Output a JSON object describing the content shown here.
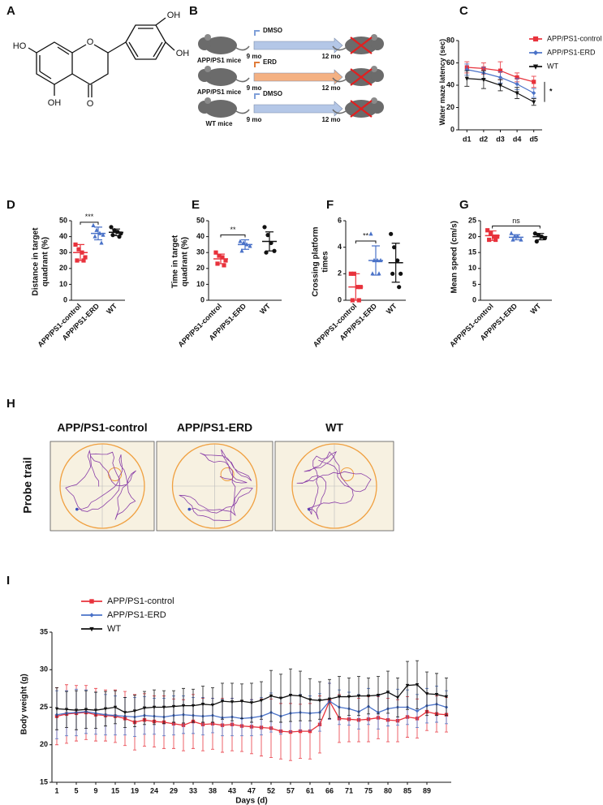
{
  "panel_labels": [
    "A",
    "B",
    "C",
    "D",
    "E",
    "F",
    "G",
    "H",
    "I"
  ],
  "structure": {
    "atoms": [
      "HO",
      "OH",
      "O",
      "O",
      "OH",
      "OH"
    ]
  },
  "design": {
    "rows": [
      {
        "treatment": "DMSO",
        "color": "#b4c7e7",
        "start": "9 mo",
        "end": "12 mo",
        "group": "APP/PS1 mice"
      },
      {
        "treatment": "ERD",
        "color": "#f4b183",
        "start": "9 mo",
        "end": "12 mo",
        "group": "APP/PS1 mice"
      },
      {
        "treatment": "DMSO",
        "color": "#b4c7e7",
        "start": "9 mo",
        "end": "12 mo",
        "group": "WT mice"
      }
    ]
  },
  "probe_trail": {
    "title": "Probe trail",
    "groups": [
      "APP/PS1-control",
      "APP/PS1-ERD",
      "WT"
    ]
  },
  "chart_data": [
    {
      "type": "line",
      "ylabel": "Water maze latency (sec)",
      "categories": [
        "d1",
        "d2",
        "d3",
        "d4",
        "d5"
      ],
      "ylim": [
        0,
        80
      ],
      "yticks": [
        0,
        20,
        40,
        60,
        80
      ],
      "legend": "upper right",
      "annotation": "*",
      "series": [
        {
          "name": "APP/PS1-control",
          "color": "#e8323c",
          "marker": "square",
          "values": [
            56,
            55,
            53,
            47,
            43
          ],
          "errors": [
            5,
            5,
            8,
            4,
            5
          ]
        },
        {
          "name": "APP/PS1-ERD",
          "color": "#4a72c8",
          "marker": "diamond",
          "values": [
            54,
            51,
            47,
            41,
            33
          ],
          "errors": [
            5,
            5,
            5,
            5,
            4
          ]
        },
        {
          "name": "WT",
          "color": "#111111",
          "marker": "triangle-down",
          "values": [
            46,
            45,
            40,
            33,
            25
          ],
          "errors": [
            7,
            8,
            5,
            5,
            3
          ]
        }
      ]
    },
    {
      "type": "dotplot",
      "ylabel": "Distance in target quadrant (%)",
      "categories": [
        "APP/PS1-control",
        "APP/PS1-ERD",
        "WT"
      ],
      "ylim": [
        0,
        50
      ],
      "yticks": [
        0,
        10,
        20,
        30,
        40,
        50
      ],
      "annotation": "***",
      "annotation_span": [
        0,
        1
      ],
      "groups": [
        {
          "color": "#e8323c",
          "marker": "square",
          "points": [
            35,
            32,
            30,
            27,
            25,
            25
          ],
          "mean": 30,
          "sd": 5
        },
        {
          "color": "#4a72c8",
          "marker": "triangle",
          "points": [
            47,
            44,
            42,
            41,
            40,
            36
          ],
          "mean": 42,
          "sd": 4
        },
        {
          "color": "#111111",
          "marker": "circle",
          "points": [
            46,
            44,
            43,
            42,
            41,
            40
          ],
          "mean": 42.7,
          "sd": 2.1
        }
      ]
    },
    {
      "type": "dotplot",
      "ylabel": "Time in target quadrant (%)",
      "categories": [
        "APP/PS1-control",
        "APP/PS1-ERD",
        "WT"
      ],
      "ylim": [
        0,
        50
      ],
      "yticks": [
        0,
        10,
        20,
        30,
        40,
        50
      ],
      "annotation": "**",
      "annotation_span": [
        0,
        1
      ],
      "groups": [
        {
          "color": "#e8323c",
          "marker": "square",
          "points": [
            30,
            28,
            27,
            25,
            23,
            22
          ],
          "mean": 26,
          "sd": 3
        },
        {
          "color": "#4a72c8",
          "marker": "triangle",
          "points": [
            37,
            36,
            35,
            34,
            31
          ],
          "mean": 35,
          "sd": 3
        },
        {
          "color": "#111111",
          "marker": "circle",
          "points": [
            46,
            41,
            36,
            31,
            30
          ],
          "mean": 37,
          "sd": 6
        }
      ]
    },
    {
      "type": "dotplot",
      "ylabel": "Crossing platform times",
      "categories": [
        "APP/PS1-control",
        "APP/PS1-ERD",
        "WT"
      ],
      "ylim": [
        0,
        6
      ],
      "yticks": [
        0,
        2,
        4,
        6
      ],
      "annotation": "**",
      "annotation_span": [
        0,
        1
      ],
      "groups": [
        {
          "color": "#e8323c",
          "marker": "square",
          "points": [
            2,
            2,
            1,
            1,
            0,
            0
          ],
          "mean": 1,
          "sd": 1
        },
        {
          "color": "#4a72c8",
          "marker": "triangle",
          "points": [
            5,
            3,
            3,
            3,
            2,
            2
          ],
          "mean": 3,
          "sd": 1.1
        },
        {
          "color": "#111111",
          "marker": "circle",
          "points": [
            5,
            4,
            3,
            2,
            2,
            1
          ],
          "mean": 2.83,
          "sd": 1.47
        }
      ]
    },
    {
      "type": "dotplot",
      "ylabel": "Mean speed (cm/s)",
      "categories": [
        "APP/PS1-control",
        "APP/PS1-ERD",
        "WT"
      ],
      "ylim": [
        0,
        25
      ],
      "yticks": [
        0,
        5,
        10,
        15,
        20,
        25
      ],
      "annotation": "ns",
      "annotation_span": [
        0,
        2
      ],
      "groups": [
        {
          "color": "#e8323c",
          "marker": "square",
          "points": [
            22,
            21,
            20,
            20,
            19,
            19
          ],
          "mean": 20.3,
          "sd": 1.5
        },
        {
          "color": "#4a72c8",
          "marker": "triangle",
          "points": [
            21,
            20,
            20,
            19,
            19
          ],
          "mean": 19.8,
          "sd": 0.8
        },
        {
          "color": "#111111",
          "marker": "circle",
          "points": [
            21,
            20.5,
            20,
            19.5,
            18.5
          ],
          "mean": 20,
          "sd": 1
        }
      ]
    },
    {
      "type": "line",
      "xlabel": "Days (d)",
      "ylabel": "Body weight (g)",
      "categories": [
        "1",
        null,
        "5",
        null,
        "9",
        null,
        "15",
        null,
        "19",
        null,
        "24",
        null,
        "29",
        null,
        "33",
        null,
        "38",
        null,
        "43",
        null,
        "47",
        null,
        "52",
        null,
        "57",
        null,
        "61",
        null,
        "66",
        null,
        "71",
        null,
        "75",
        null,
        "80",
        null,
        "85",
        null,
        "89",
        null,
        null
      ],
      "ylim": [
        15,
        35
      ],
      "yticks": [
        15,
        20,
        25,
        30,
        35
      ],
      "legend": "upper left",
      "series": [
        {
          "name": "APP/PS1-control",
          "color": "#e8323c",
          "marker": "square",
          "values": [
            23.8,
            24.1,
            24.2,
            24.3,
            24.0,
            23.9,
            23.8,
            23.5,
            23.0,
            23.3,
            23.1,
            23.0,
            22.8,
            22.6,
            23.1,
            22.7,
            22.8,
            22.6,
            22.7,
            22.5,
            22.4,
            22.3,
            22.2,
            21.8,
            21.7,
            21.8,
            21.8,
            22.7,
            25.8,
            23.5,
            23.4,
            23.3,
            23.4,
            23.6,
            23.3,
            23.2,
            23.7,
            23.5,
            24.4,
            24.1,
            24.0
          ],
          "errors": [
            3.8,
            3.9,
            3.7,
            3.6,
            3.5,
            3.4,
            3.5,
            3.6,
            3.7,
            3.5,
            3.4,
            3.5,
            3.3,
            3.4,
            3.6,
            3.5,
            3.4,
            3.6,
            3.5,
            3.4,
            3.6,
            3.8,
            3.9,
            3.7,
            3.8,
            3.6,
            3.7,
            3.8,
            2.4,
            3.2,
            3.0,
            2.9,
            3.0,
            2.8,
            2.9,
            2.8,
            2.7,
            2.6,
            2.5,
            2.4,
            2.3
          ]
        },
        {
          "name": "APP/PS1-ERD",
          "color": "#4a72c8",
          "marker": "diamond",
          "values": [
            24.0,
            24.2,
            24.3,
            24.4,
            24.2,
            24.0,
            23.9,
            23.8,
            23.7,
            23.9,
            23.8,
            23.7,
            23.9,
            24.0,
            23.9,
            23.8,
            23.9,
            23.6,
            23.7,
            23.5,
            23.6,
            23.8,
            24.3,
            23.8,
            24.2,
            24.3,
            24.2,
            24.3,
            25.8,
            25.0,
            24.8,
            24.4,
            25.1,
            24.3,
            24.8,
            25.0,
            25.0,
            24.5,
            25.2,
            25.4,
            25.0
          ],
          "errors": [
            3.2,
            3.0,
            3.1,
            2.9,
            2.8,
            2.7,
            2.6,
            2.5,
            2.6,
            2.5,
            2.4,
            2.5,
            2.6,
            2.5,
            2.4,
            2.5,
            2.3,
            2.4,
            2.5,
            2.3,
            2.4,
            2.5,
            2.6,
            2.4,
            2.5,
            2.4,
            2.3,
            2.5,
            2.4,
            2.3,
            2.2,
            2.3,
            2.4,
            2.2,
            2.3,
            2.4,
            2.3,
            2.2,
            2.3,
            2.4,
            2.2
          ]
        },
        {
          "name": "WT",
          "color": "#111111",
          "marker": "triangle-down",
          "values": [
            24.8,
            24.7,
            24.6,
            24.7,
            24.6,
            24.8,
            25.0,
            24.3,
            24.5,
            24.9,
            25.0,
            25.0,
            25.1,
            25.2,
            25.2,
            25.4,
            25.3,
            25.8,
            25.7,
            25.8,
            25.6,
            25.9,
            26.5,
            26.2,
            26.6,
            26.5,
            26.0,
            25.9,
            26.1,
            26.4,
            26.4,
            26.5,
            26.5,
            26.6,
            27.0,
            26.3,
            27.9,
            28.0,
            26.8,
            26.7,
            26.4
          ],
          "errors": [
            2.8,
            2.4,
            2.6,
            2.5,
            2.4,
            2.3,
            2.2,
            2.0,
            2.1,
            2.2,
            2.3,
            2.2,
            2.1,
            2.3,
            2.2,
            2.4,
            2.3,
            2.4,
            2.5,
            2.3,
            2.6,
            2.5,
            3.4,
            3.2,
            3.5,
            3.3,
            2.8,
            2.5,
            2.6,
            2.7,
            2.5,
            2.6,
            2.4,
            2.5,
            2.8,
            2.6,
            3.2,
            3.2,
            2.9,
            2.8,
            2.5
          ]
        }
      ]
    }
  ]
}
